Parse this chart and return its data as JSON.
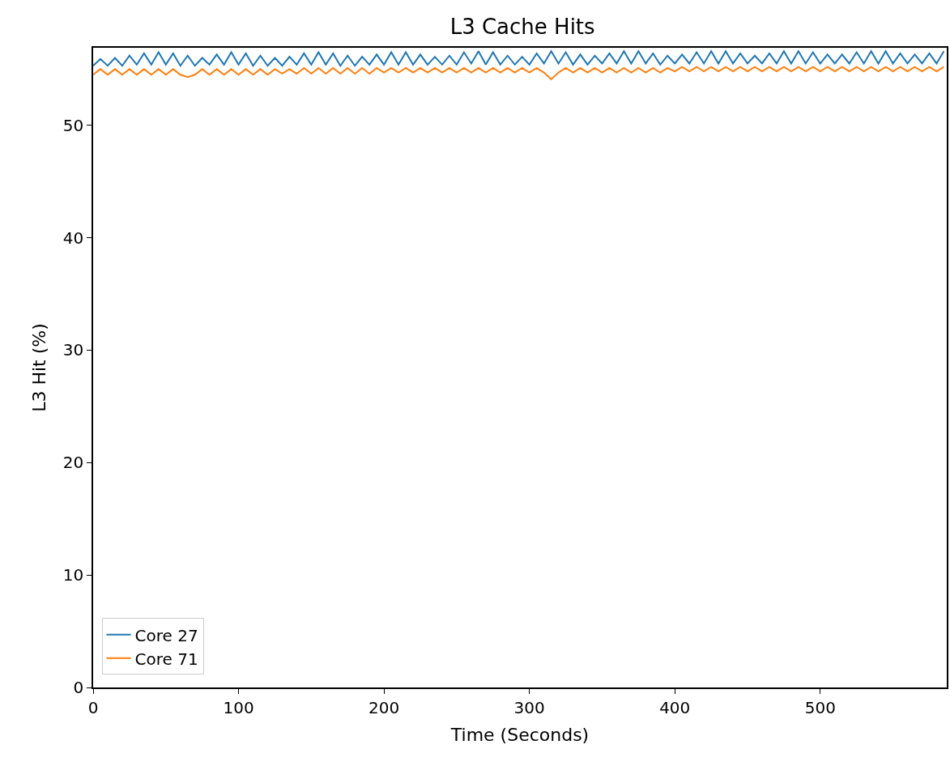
{
  "chart_data": {
    "type": "line",
    "title": "L3 Cache Hits",
    "xlabel": "Time (Seconds)",
    "ylabel": "L3 Hit (%)",
    "x": [
      0,
      5,
      10,
      15,
      20,
      25,
      30,
      35,
      40,
      45,
      50,
      55,
      60,
      65,
      70,
      75,
      80,
      85,
      90,
      95,
      100,
      105,
      110,
      115,
      120,
      125,
      130,
      135,
      140,
      145,
      150,
      155,
      160,
      165,
      170,
      175,
      180,
      185,
      190,
      195,
      200,
      205,
      210,
      215,
      220,
      225,
      230,
      235,
      240,
      245,
      250,
      255,
      260,
      265,
      270,
      275,
      280,
      285,
      290,
      295,
      300,
      305,
      310,
      315,
      320,
      325,
      330,
      335,
      340,
      345,
      350,
      355,
      360,
      365,
      370,
      375,
      380,
      385,
      390,
      395,
      400,
      405,
      410,
      415,
      420,
      425,
      430,
      435,
      440,
      445,
      450,
      455,
      460,
      465,
      470,
      475,
      480,
      485,
      490,
      495,
      500,
      505,
      510,
      515,
      520,
      525,
      530,
      535,
      540,
      545,
      550,
      555,
      560,
      565,
      570,
      575,
      580,
      585
    ],
    "series": [
      {
        "name": "Core 27",
        "color": "#1f77b4",
        "values": [
          55.3,
          55.9,
          55.3,
          56.0,
          55.3,
          56.2,
          55.4,
          56.4,
          55.4,
          56.5,
          55.4,
          56.4,
          55.3,
          56.2,
          55.3,
          56.0,
          55.4,
          56.3,
          55.4,
          56.5,
          55.4,
          56.4,
          55.3,
          56.2,
          55.3,
          56.0,
          55.3,
          56.1,
          55.4,
          56.4,
          55.4,
          56.5,
          55.4,
          56.4,
          55.3,
          56.2,
          55.3,
          56.1,
          55.4,
          56.3,
          55.4,
          56.5,
          55.4,
          56.5,
          55.4,
          56.3,
          55.4,
          56.1,
          55.4,
          56.2,
          55.4,
          56.5,
          55.5,
          56.6,
          55.4,
          56.5,
          55.4,
          56.2,
          55.4,
          56.1,
          55.4,
          56.4,
          55.5,
          56.6,
          55.5,
          56.5,
          55.4,
          56.3,
          55.4,
          56.2,
          55.5,
          56.4,
          55.5,
          56.6,
          55.5,
          56.6,
          55.5,
          56.4,
          55.4,
          56.2,
          55.5,
          56.3,
          55.5,
          56.5,
          55.5,
          56.6,
          55.5,
          56.6,
          55.5,
          56.4,
          55.5,
          56.2,
          55.5,
          56.4,
          55.5,
          56.6,
          55.5,
          56.6,
          55.5,
          56.5,
          55.5,
          56.3,
          55.5,
          56.3,
          55.5,
          56.5,
          55.5,
          56.6,
          55.5,
          56.6,
          55.5,
          56.4,
          55.5,
          56.3,
          55.5,
          56.4,
          55.5,
          56.6
        ]
      },
      {
        "name": "Core 71",
        "color": "#ff7f0e",
        "values": [
          54.5,
          55.0,
          54.5,
          55.0,
          54.5,
          55.0,
          54.5,
          55.0,
          54.5,
          55.0,
          54.5,
          55.0,
          54.5,
          54.3,
          54.5,
          55.0,
          54.5,
          55.0,
          54.5,
          55.0,
          54.5,
          55.0,
          54.5,
          55.0,
          54.5,
          55.0,
          54.6,
          55.0,
          54.6,
          55.1,
          54.6,
          55.1,
          54.6,
          55.1,
          54.6,
          55.1,
          54.6,
          55.1,
          54.6,
          55.1,
          54.7,
          55.1,
          54.7,
          55.1,
          54.7,
          55.1,
          54.7,
          55.1,
          54.7,
          55.1,
          54.7,
          55.1,
          54.7,
          55.1,
          54.7,
          55.1,
          54.7,
          55.1,
          54.7,
          55.1,
          54.7,
          55.1,
          54.7,
          54.1,
          54.7,
          55.1,
          54.7,
          55.1,
          54.7,
          55.1,
          54.7,
          55.1,
          54.7,
          55.1,
          54.7,
          55.1,
          54.7,
          55.1,
          54.7,
          55.1,
          54.8,
          55.2,
          54.8,
          55.2,
          54.8,
          55.2,
          54.8,
          55.2,
          54.8,
          55.2,
          54.8,
          55.2,
          54.8,
          55.2,
          54.8,
          55.2,
          54.8,
          55.2,
          54.8,
          55.2,
          54.8,
          55.2,
          54.8,
          55.2,
          54.8,
          55.2,
          54.8,
          55.2,
          54.8,
          55.2,
          54.8,
          55.2,
          54.8,
          55.2,
          54.8,
          55.2,
          54.8,
          55.2
        ]
      }
    ],
    "xlim": [
      0,
      587
    ],
    "xticks": [
      0,
      100,
      200,
      300,
      400,
      500
    ],
    "ylim": [
      0,
      56.9
    ],
    "yticks": [
      0,
      10,
      20,
      30,
      40,
      50
    ],
    "legend": "bottom left",
    "grid": false,
    "line_style": "solid",
    "marker": "none"
  }
}
